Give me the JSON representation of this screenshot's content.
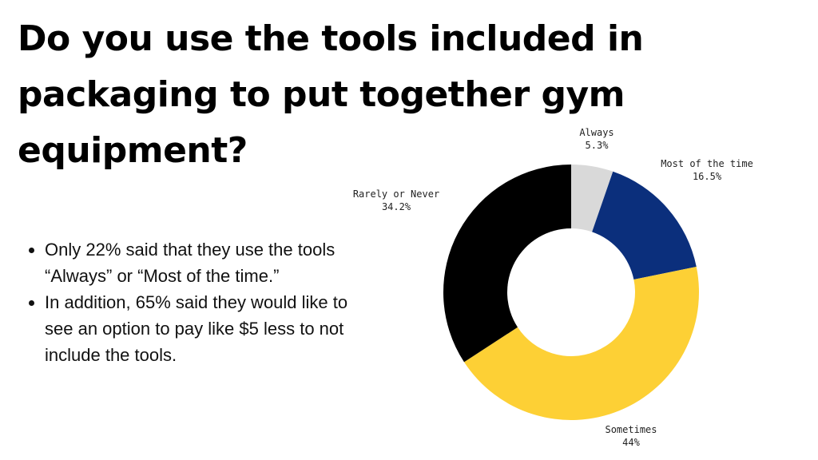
{
  "title": "Do you use the tools included in packaging to put together gym equipment?",
  "bullets": [
    "Only 22% said that they use the tools “Always” or “Most of the time.”",
    "In addition, 65% said they would like to see an option to pay like $5 less to not include the tools."
  ],
  "chart_data": {
    "type": "pie",
    "donut": true,
    "categories": [
      "Always",
      "Most of the time",
      "Sometimes",
      "Rarely or Never"
    ],
    "values": [
      5.3,
      16.5,
      44,
      34.2
    ],
    "value_labels": [
      "5.3%",
      "16.5%",
      "44%",
      "34.2%"
    ],
    "colors": [
      "#d9d9d9",
      "#0b2f7c",
      "#fdd035",
      "#000000"
    ]
  }
}
